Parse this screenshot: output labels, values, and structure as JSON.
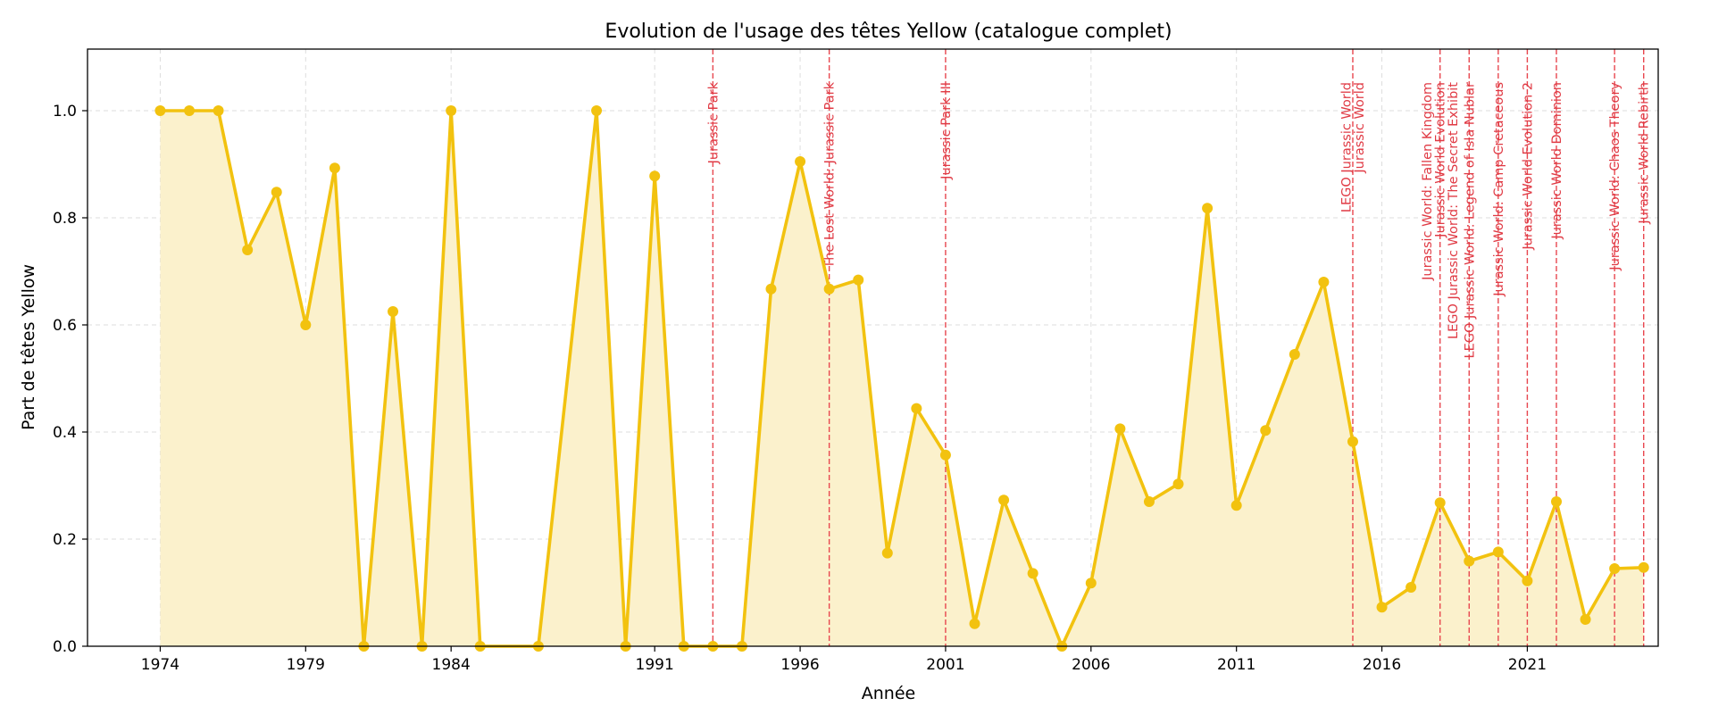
{
  "chart_data": {
    "type": "line",
    "title": "Evolution de l'usage des têtes Yellow (catalogue complet)",
    "xlabel": "Année",
    "ylabel": "Part de têtes Yellow",
    "xlim": [
      1971.5,
      2025.5
    ],
    "ylim": [
      0,
      1.115
    ],
    "x_ticks": [
      1974,
      1979,
      1984,
      1991,
      1996,
      2001,
      2006,
      2011,
      2016,
      2021
    ],
    "y_ticks": [
      0.0,
      0.2,
      0.4,
      0.6,
      0.8,
      1.0
    ],
    "grid": true,
    "fill_under_line": true,
    "colors": {
      "line": "#f2c20f",
      "fill": "#fbf1cc",
      "event_line": "#e8474f",
      "event_text": "#e03a44",
      "grid": "#dddddd"
    },
    "series": [
      {
        "x": [
          1974,
          1975,
          1976,
          1977,
          1978,
          1979,
          1980,
          1981,
          1982,
          1983,
          1984,
          1985,
          1987,
          1989,
          1990,
          1991,
          1992,
          1993,
          1994,
          1995,
          1996,
          1997,
          1998,
          1999,
          2000,
          2001,
          2002,
          2003,
          2004,
          2005,
          2006,
          2007,
          2008,
          2009,
          2010,
          2011,
          2012,
          2013,
          2014,
          2015,
          2016,
          2017,
          2018,
          2019,
          2020,
          2021,
          2022,
          2023,
          2024,
          2025
        ],
        "values": [
          1.0,
          1.0,
          1.0,
          0.74,
          0.848,
          0.6,
          0.893,
          0.0,
          0.625,
          0.0,
          1.0,
          0.0,
          0.0,
          1.0,
          0.0,
          0.878,
          0.0,
          0.0,
          0.0,
          0.667,
          0.905,
          0.667,
          0.684,
          0.174,
          0.444,
          0.357,
          0.042,
          0.273,
          0.136,
          0.0,
          0.118,
          0.406,
          0.27,
          0.303,
          0.818,
          0.263,
          0.403,
          0.545,
          0.68,
          0.382,
          0.073,
          0.11,
          0.268,
          0.159,
          0.176,
          0.122,
          0.27,
          0.05,
          0.145,
          0.147
        ]
      }
    ],
    "events": [
      {
        "year": 1993,
        "label": "Jurassic Park"
      },
      {
        "year": 1997,
        "label": "The Lost World: Jurassic Park"
      },
      {
        "year": 2001,
        "label": "Jurassic Park III"
      },
      {
        "year": 2015,
        "label": "LEGO Jurassic World"
      },
      {
        "year": 2015,
        "label": "Jurassic World"
      },
      {
        "year": 2018,
        "label": "Jurassic World: Fallen Kingdom"
      },
      {
        "year": 2018,
        "label": "Jurassic World Evolution"
      },
      {
        "year": 2018,
        "label": "LEGO Jurassic World: The Secret Exhibit"
      },
      {
        "year": 2019,
        "label": "LEGO Jurassic World: Legend of Isla Nublar"
      },
      {
        "year": 2020,
        "label": "Jurassic World: Camp Cretaceous"
      },
      {
        "year": 2021,
        "label": "Jurassic World Evolution 2"
      },
      {
        "year": 2022,
        "label": "Jurassic World Dominion"
      },
      {
        "year": 2024,
        "label": "Jurassic World: Chaos Theory"
      },
      {
        "year": 2025,
        "label": "Jurassic World Rebirth"
      }
    ]
  }
}
